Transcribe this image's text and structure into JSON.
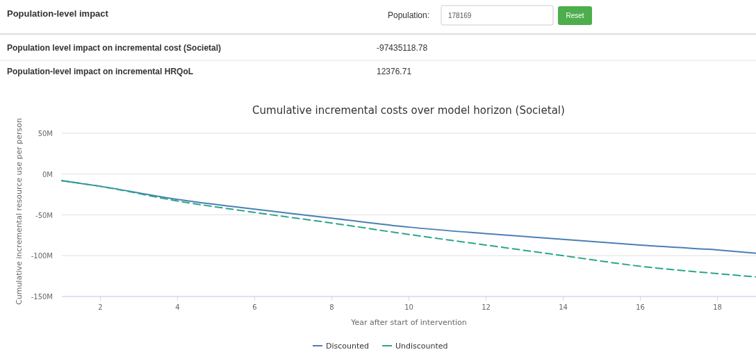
{
  "chart_data": [
    {
      "type": "other",
      "title": "Population-level impact",
      "annotations": [
        "Population:",
        "178169",
        "Reset",
        "Population level impact on incremental cost (Societal)",
        "-97435118.78",
        "Population-level impact on incremental HRQoL",
        "12376.71"
      ]
    },
    {
      "type": "line",
      "title": "Cumulative incremental costs over model horizon (Societal)",
      "xlabel": "Year after start of intervention",
      "ylabel": "Cumulative incremental resource use per person",
      "x": [
        1,
        2,
        4,
        6,
        8,
        10,
        12,
        14,
        16,
        18,
        19
      ],
      "series": [
        {
          "name": "Discounted",
          "color": "#4a7fb5",
          "line_style": "solid",
          "values": [
            -8,
            -15,
            -31,
            -43,
            -54,
            -65,
            -73,
            -80,
            -87,
            -93,
            -97
          ]
        },
        {
          "name": "Undiscounted",
          "color": "#2ba58a",
          "line_style": "dashed",
          "values": [
            -8,
            -15,
            -33,
            -47,
            -60,
            -74,
            -87,
            -100,
            -113,
            -122,
            -126
          ]
        }
      ],
      "xlim": [
        1,
        19
      ],
      "xticks": [
        2,
        4,
        6,
        8,
        10,
        12,
        14,
        16,
        18
      ],
      "ylim": [
        -150,
        50
      ],
      "yticks": [
        {
          "value": -150,
          "label": "-150M"
        },
        {
          "value": -100,
          "label": "-100M"
        },
        {
          "value": -50,
          "label": "-50M"
        },
        {
          "value": 0,
          "label": "0M"
        },
        {
          "value": 50,
          "label": "50M"
        }
      ],
      "grid": "y",
      "legend": "bottom",
      "marker": "none"
    }
  ]
}
